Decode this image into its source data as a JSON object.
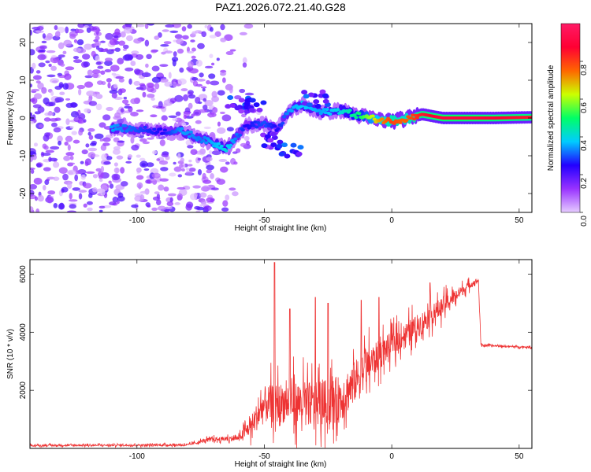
{
  "figure": {
    "title": "PAZ1.2026.072.21.40.G28"
  },
  "chart_data": [
    {
      "type": "heatmap",
      "name": "spectrogram",
      "xlabel": "Height of straight line (km)",
      "ylabel": "Frequency (Hz)",
      "xlim": [
        -142,
        55
      ],
      "ylim": [
        -25,
        25
      ],
      "xticks": [
        -100,
        -50,
        0,
        50
      ],
      "yticks": [
        -20,
        -10,
        0,
        10,
        20
      ],
      "colorbar": {
        "label": "Normalized spectral amplitude",
        "range": [
          0,
          1
        ],
        "ticks": [
          0.0,
          0.2,
          0.4,
          0.6,
          0.8
        ],
        "colormap": [
          "#e6ccff",
          "#9933ff",
          "#2200ff",
          "#00ccff",
          "#00ff66",
          "#ccff00",
          "#ff6600",
          "#ff0033",
          "#ff1a66"
        ]
      },
      "ridge": [
        {
          "x": -110,
          "f": -2.5,
          "a": 0.35
        },
        {
          "x": -100,
          "f": -3.0,
          "a": 0.3
        },
        {
          "x": -90,
          "f": -3.5,
          "a": 0.25
        },
        {
          "x": -82,
          "f": -3.5,
          "a": 0.35
        },
        {
          "x": -75,
          "f": -5.5,
          "a": 0.32
        },
        {
          "x": -65,
          "f": -8.0,
          "a": 0.4
        },
        {
          "x": -57,
          "f": -2.0,
          "a": 0.25
        },
        {
          "x": -50,
          "f": -1.5,
          "a": 0.3
        },
        {
          "x": -45,
          "f": -3.0,
          "a": 0.25
        },
        {
          "x": -40,
          "f": 2.0,
          "a": 0.35
        },
        {
          "x": -35,
          "f": 3.5,
          "a": 0.38
        },
        {
          "x": -28,
          "f": 1.5,
          "a": 0.35
        },
        {
          "x": -20,
          "f": 2.0,
          "a": 0.4
        },
        {
          "x": -12,
          "f": 0.5,
          "a": 0.5
        },
        {
          "x": -5,
          "f": -0.5,
          "a": 0.7
        },
        {
          "x": 0,
          "f": -0.8,
          "a": 0.8
        },
        {
          "x": 5,
          "f": -0.3,
          "a": 0.75
        },
        {
          "x": 12,
          "f": 1.0,
          "a": 0.85
        },
        {
          "x": 20,
          "f": 0.0,
          "a": 0.9
        },
        {
          "x": 30,
          "f": 0.0,
          "a": 0.9
        },
        {
          "x": 40,
          "f": 0.0,
          "a": 0.88
        },
        {
          "x": 55,
          "f": 0.2,
          "a": 0.85
        }
      ],
      "secondary_branches": [
        {
          "x": -60,
          "f": 3.5,
          "a": 0.3
        },
        {
          "x": -55,
          "f": 3.0,
          "a": 0.25
        },
        {
          "x": -48,
          "f": -6.0,
          "a": 0.25
        },
        {
          "x": -40,
          "f": -9.0,
          "a": 0.3
        },
        {
          "x": -30,
          "f": 5.0,
          "a": 0.3
        }
      ]
    },
    {
      "type": "line",
      "name": "snr",
      "xlabel": "Height of straight line (km)",
      "ylabel": "SNR (10 * v/v)",
      "xlim": [
        -142,
        55
      ],
      "ylim": [
        0,
        6500
      ],
      "xticks": [
        -100,
        -50,
        0,
        50
      ],
      "yticks": [
        2000,
        4000,
        6000
      ],
      "color": "#ee3333",
      "envelope": [
        {
          "x": -142,
          "base": 100,
          "spread": 60
        },
        {
          "x": -80,
          "base": 120,
          "spread": 80
        },
        {
          "x": -72,
          "base": 300,
          "spread": 150
        },
        {
          "x": -60,
          "base": 350,
          "spread": 200
        },
        {
          "x": -55,
          "base": 800,
          "spread": 800
        },
        {
          "x": -50,
          "base": 1500,
          "spread": 1400
        },
        {
          "x": -40,
          "base": 1600,
          "spread": 1600
        },
        {
          "x": -30,
          "base": 1500,
          "spread": 1700
        },
        {
          "x": -20,
          "base": 1700,
          "spread": 1800
        },
        {
          "x": -10,
          "base": 2800,
          "spread": 1400
        },
        {
          "x": 0,
          "base": 3600,
          "spread": 900
        },
        {
          "x": 10,
          "base": 4200,
          "spread": 900
        },
        {
          "x": 20,
          "base": 4900,
          "spread": 700
        },
        {
          "x": 30,
          "base": 5600,
          "spread": 300
        },
        {
          "x": 34,
          "base": 5800,
          "spread": 150
        },
        {
          "x": 35,
          "base": 3550,
          "spread": 80
        },
        {
          "x": 55,
          "base": 3480,
          "spread": 60
        }
      ],
      "peaks": [
        {
          "x": -46,
          "y": 6400
        },
        {
          "x": -40,
          "y": 4800
        },
        {
          "x": -30,
          "y": 5200
        },
        {
          "x": -25,
          "y": 5000
        },
        {
          "x": -12,
          "y": 5100
        },
        {
          "x": -5,
          "y": 5200
        },
        {
          "x": 15,
          "y": 5700
        }
      ]
    }
  ]
}
